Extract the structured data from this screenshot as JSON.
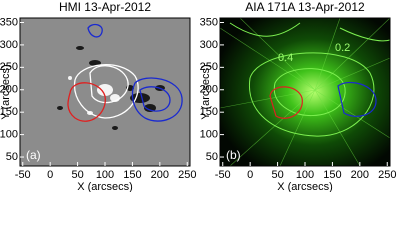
{
  "chart_data": [
    {
      "type": "image",
      "title": "HMI 13-Apr-2012",
      "xlabel": "X (arcsecs)",
      "ylabel": "Y (arcsecs)",
      "xlim": [
        -55,
        255
      ],
      "ylim": [
        30,
        360
      ],
      "xticks": [
        -50,
        0,
        50,
        100,
        150,
        200,
        250
      ],
      "yticks": [
        50,
        100,
        150,
        200,
        250,
        300,
        350
      ],
      "panel_label": "(a)",
      "annotations": []
    },
    {
      "type": "image",
      "title": "AIA 171A 13-Apr-2012",
      "xlabel": "X (arcsecs)",
      "ylabel": "Y (arcsecs)",
      "xlim": [
        -55,
        255
      ],
      "ylim": [
        30,
        360
      ],
      "xticks": [
        -50,
        0,
        50,
        100,
        150,
        200,
        250
      ],
      "yticks": [
        50,
        100,
        150,
        200,
        250,
        300,
        350
      ],
      "panel_label": "(b)",
      "annotations": [
        "0.4",
        "0.2"
      ]
    }
  ]
}
